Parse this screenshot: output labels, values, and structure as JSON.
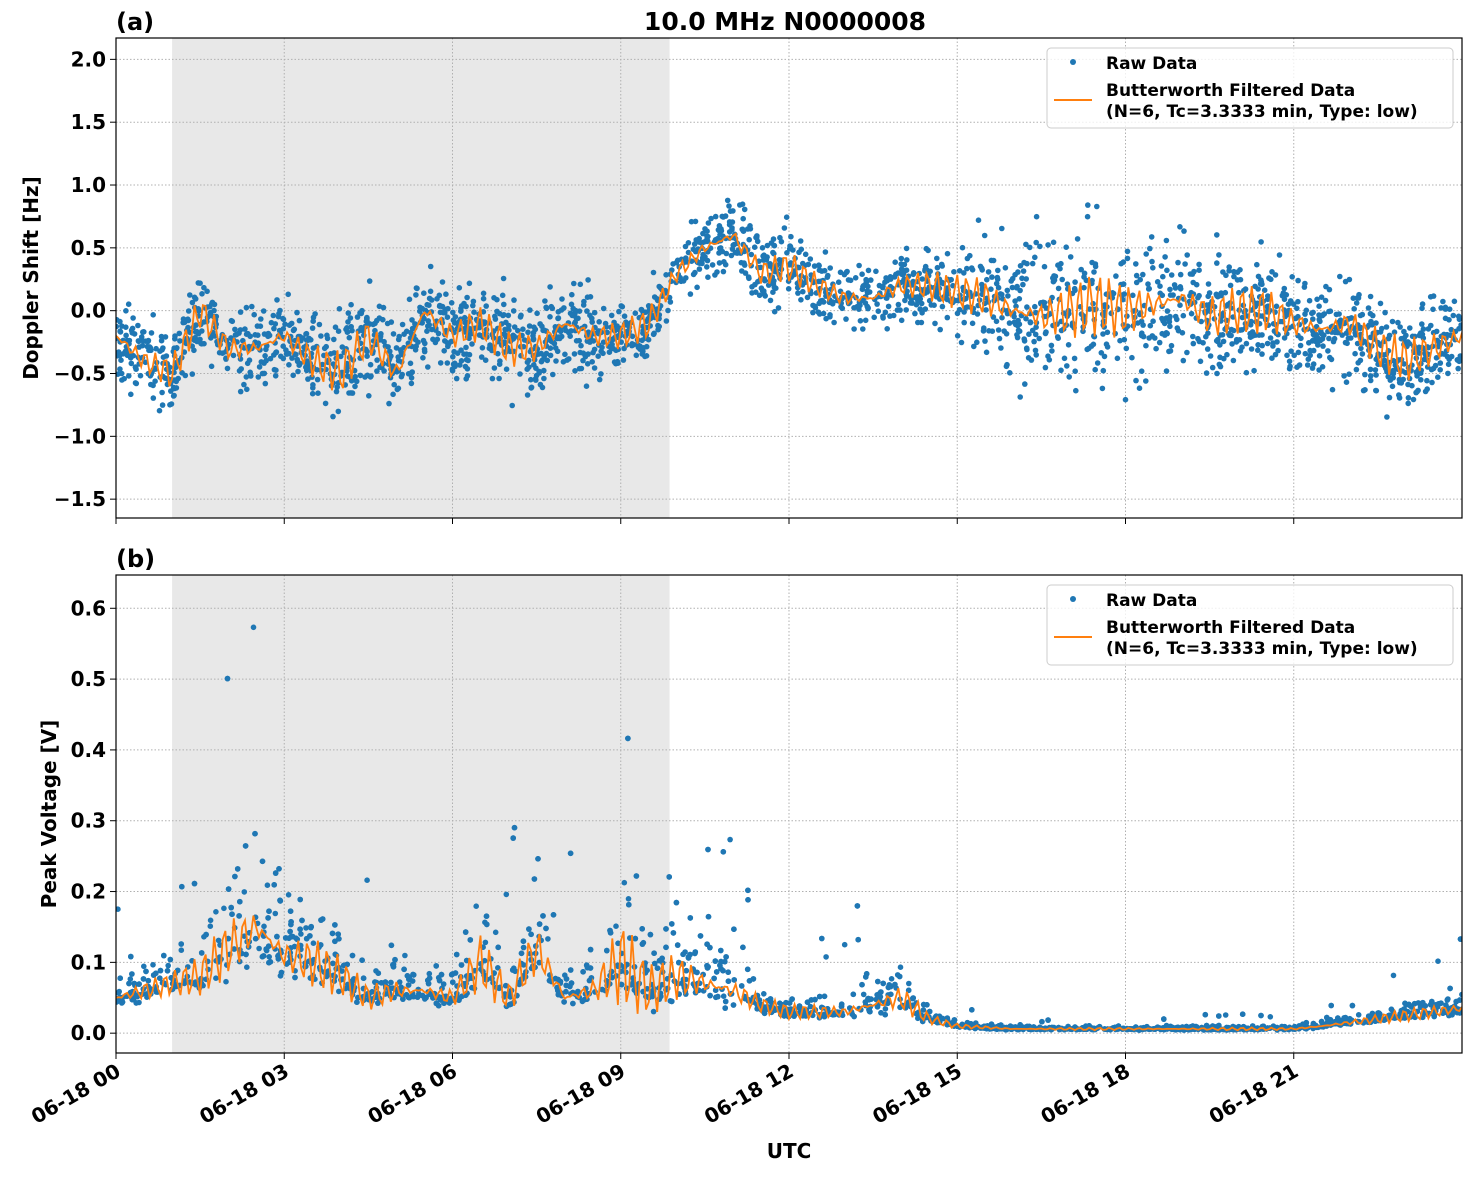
{
  "chart_data": [
    {
      "type": "scatter",
      "panel_label": "(a)",
      "title": "10.0 MHz N0000008",
      "ylabel": "Doppler Shift [Hz]",
      "xlabel": "",
      "xlim_hours_utc": [
        0,
        24
      ],
      "ylim": [
        -1.65,
        2.17
      ],
      "yticks": [
        2.0,
        1.5,
        1.0,
        0.5,
        0.0,
        -0.5,
        -1.0,
        -1.5
      ],
      "ytick_labels": [
        "2.0",
        "1.5",
        "1.0",
        "0.5",
        "0.0",
        "−0.5",
        "−1.0",
        "−1.5"
      ],
      "grid": true,
      "shaded_hours_utc": [
        1.0,
        9.87
      ],
      "legend": {
        "placement": "top-right",
        "entries": [
          "Raw Data",
          "Butterworth Filtered Data",
          "(N=6, Tc=3.3333 min, Type: low)"
        ]
      },
      "series": [
        {
          "name": "Raw Data",
          "kind": "points",
          "color": "#1f77b4",
          "x_hours": [
            0,
            0.5,
            1,
            1.5,
            2,
            2.5,
            3,
            3.5,
            4,
            4.5,
            5,
            5.5,
            6,
            6.5,
            7,
            7.5,
            8,
            8.5,
            9,
            9.5,
            10,
            10.5,
            11,
            11.5,
            12,
            12.5,
            13,
            13.5,
            14,
            14.5,
            15,
            15.5,
            16,
            16.5,
            17,
            17.5,
            18,
            18.5,
            19,
            19.5,
            20,
            20.5,
            21,
            21.5,
            22,
            22.5,
            23,
            23.5,
            24
          ],
          "spread": [
            0.35,
            0.4,
            0.4,
            0.4,
            0.35,
            0.4,
            0.4,
            0.45,
            0.5,
            0.45,
            0.45,
            0.4,
            0.4,
            0.4,
            0.45,
            0.45,
            0.4,
            0.4,
            0.35,
            0.35,
            0.25,
            0.35,
            0.35,
            0.35,
            0.35,
            0.3,
            0.3,
            0.3,
            0.35,
            0.35,
            0.4,
            0.6,
            0.65,
            0.7,
            0.7,
            0.7,
            0.7,
            0.65,
            0.6,
            0.6,
            0.55,
            0.55,
            0.5,
            0.5,
            0.5,
            0.5,
            0.5,
            0.45,
            0.45
          ]
        },
        {
          "name": "Butterworth Filtered Data",
          "kind": "line",
          "color": "#ff7f0e",
          "x_hours": [
            0,
            0.5,
            1,
            1.5,
            2,
            2.5,
            3,
            3.5,
            4,
            4.5,
            5,
            5.5,
            6,
            6.5,
            7,
            7.5,
            8,
            8.5,
            9,
            9.5,
            10,
            10.5,
            11,
            11.5,
            12,
            12.5,
            13,
            13.5,
            14,
            14.5,
            15,
            15.5,
            16,
            16.5,
            17,
            17.5,
            18,
            18.5,
            19,
            19.5,
            20,
            20.5,
            21,
            21.5,
            22,
            22.5,
            23,
            23.5,
            24
          ],
          "y": [
            -0.2,
            -0.4,
            -0.5,
            0.0,
            -0.3,
            -0.3,
            -0.2,
            -0.4,
            -0.5,
            -0.2,
            -0.5,
            0.0,
            -0.2,
            -0.1,
            -0.3,
            -0.3,
            -0.1,
            -0.2,
            -0.2,
            -0.1,
            0.3,
            0.5,
            0.6,
            0.3,
            0.35,
            0.2,
            0.1,
            0.1,
            0.2,
            0.2,
            0.15,
            0.1,
            0.0,
            -0.05,
            0.0,
            0.05,
            0.0,
            0.05,
            0.1,
            -0.05,
            0.0,
            0.0,
            -0.1,
            -0.15,
            -0.1,
            -0.3,
            -0.4,
            -0.3,
            -0.2
          ]
        }
      ]
    },
    {
      "type": "scatter",
      "panel_label": "(b)",
      "title": "",
      "ylabel": "Peak Voltage [V]",
      "xlabel": "UTC",
      "xlim_hours_utc": [
        0,
        24
      ],
      "xtick_labels": [
        "06-18 00",
        "06-18 03",
        "06-18 06",
        "06-18 09",
        "06-18 12",
        "06-18 15",
        "06-18 18",
        "06-18 21"
      ],
      "ylim": [
        -0.028,
        0.647
      ],
      "yticks": [
        0.6,
        0.5,
        0.4,
        0.3,
        0.2,
        0.1,
        0.0
      ],
      "ytick_labels": [
        "0.6",
        "0.5",
        "0.4",
        "0.3",
        "0.2",
        "0.1",
        "0.0"
      ],
      "grid": true,
      "shaded_hours_utc": [
        1.0,
        9.87
      ],
      "legend": {
        "placement": "top-right",
        "entries": [
          "Raw Data",
          "Butterworth Filtered Data",
          "(N=6, Tc=3.3333 min, Type: low)"
        ]
      },
      "series": [
        {
          "name": "Raw Data",
          "kind": "points",
          "color": "#1f77b4",
          "x_hours": [
            0,
            0.5,
            1,
            1.5,
            2,
            2.5,
            3,
            3.5,
            4,
            4.5,
            5,
            5.5,
            6,
            6.5,
            7,
            7.5,
            8,
            8.5,
            9,
            9.5,
            10,
            10.5,
            11,
            11.5,
            12,
            12.5,
            13,
            13.5,
            14,
            14.5,
            15,
            15.5,
            16,
            16.5,
            17,
            17.5,
            18,
            18.5,
            19,
            19.5,
            20,
            20.5,
            21,
            21.5,
            22,
            22.5,
            23,
            23.5,
            24
          ],
          "spread": [
            0.05,
            0.06,
            0.05,
            0.08,
            0.15,
            0.2,
            0.12,
            0.12,
            0.08,
            0.06,
            0.08,
            0.06,
            0.05,
            0.12,
            0.06,
            0.15,
            0.06,
            0.08,
            0.2,
            0.1,
            0.12,
            0.1,
            0.1,
            0.04,
            0.03,
            0.03,
            0.03,
            0.06,
            0.08,
            0.02,
            0.01,
            0.008,
            0.006,
            0.005,
            0.005,
            0.005,
            0.005,
            0.005,
            0.006,
            0.006,
            0.006,
            0.006,
            0.006,
            0.01,
            0.015,
            0.02,
            0.025,
            0.03,
            0.035
          ]
        },
        {
          "name": "Butterworth Filtered Data",
          "kind": "line",
          "color": "#ff7f0e",
          "x_hours": [
            0,
            0.5,
            1,
            1.5,
            2,
            2.5,
            3,
            3.5,
            4,
            4.5,
            5,
            5.5,
            6,
            6.5,
            7,
            7.5,
            8,
            8.5,
            9,
            9.5,
            10,
            10.5,
            11,
            11.5,
            12,
            12.5,
            13,
            13.5,
            14,
            14.5,
            15,
            15.5,
            16,
            16.5,
            17,
            17.5,
            18,
            18.5,
            19,
            19.5,
            20,
            20.5,
            21,
            21.5,
            22,
            22.5,
            23,
            23.5,
            24
          ],
          "y": [
            0.05,
            0.06,
            0.07,
            0.08,
            0.12,
            0.15,
            0.11,
            0.1,
            0.08,
            0.05,
            0.06,
            0.06,
            0.05,
            0.1,
            0.05,
            0.12,
            0.05,
            0.06,
            0.1,
            0.06,
            0.08,
            0.07,
            0.06,
            0.04,
            0.03,
            0.03,
            0.03,
            0.04,
            0.05,
            0.02,
            0.01,
            0.008,
            0.006,
            0.006,
            0.006,
            0.006,
            0.006,
            0.006,
            0.006,
            0.006,
            0.006,
            0.006,
            0.006,
            0.01,
            0.015,
            0.02,
            0.025,
            0.03,
            0.035
          ]
        }
      ]
    }
  ]
}
